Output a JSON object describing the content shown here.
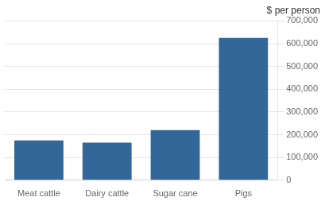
{
  "chart_data": {
    "type": "bar",
    "ylabel": "$ per person",
    "categories": [
      "Meat cattle",
      "Dairy cattle",
      "Sugar cane",
      "Pigs"
    ],
    "values": [
      175000,
      165000,
      220000,
      625000
    ],
    "color": "#336699",
    "ylim": [
      0,
      700000
    ],
    "yticks": [
      0,
      {
        "value": 100000,
        "label": "100,000"
      },
      {
        "value": 200000,
        "label": "200,000"
      },
      {
        "value": 300000,
        "label": "300,000"
      },
      {
        "value": 400000,
        "label": "400,000"
      },
      {
        "value": 500000,
        "label": "500,000"
      },
      {
        "value": 600000,
        "label": "600,000"
      },
      {
        "value": 700000,
        "label": "700,000"
      }
    ],
    "grid": true
  }
}
